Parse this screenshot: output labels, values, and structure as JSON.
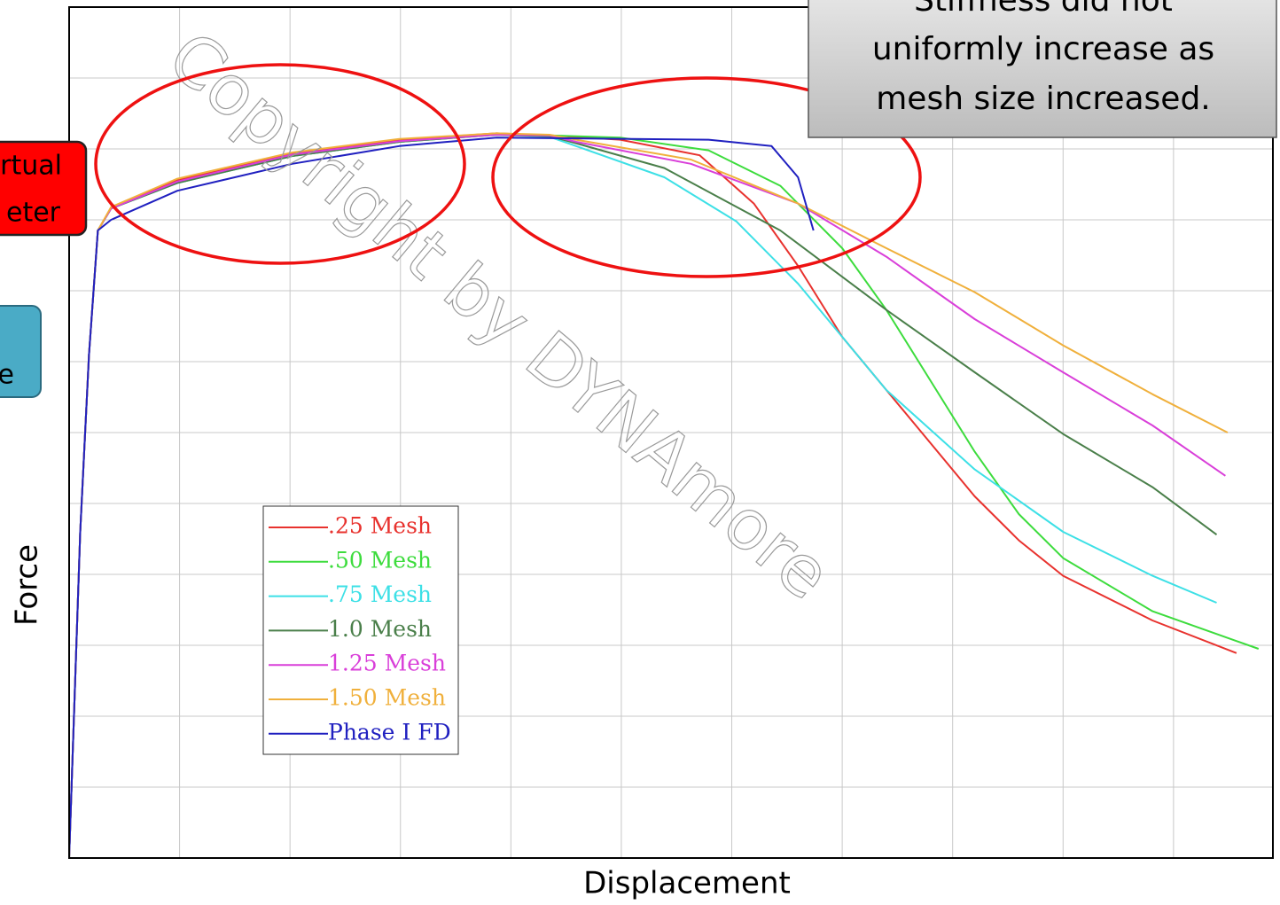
{
  "chart_data": {
    "type": "line",
    "xlabel": "Displacement",
    "ylabel": "Force",
    "xlim": [
      0,
      10.9
    ],
    "ylim": [
      0,
      12
    ],
    "xticks": [
      0,
      1,
      2,
      3,
      4,
      5,
      6,
      7,
      8,
      9,
      10
    ],
    "yticks": [
      0,
      1,
      2,
      3,
      4,
      5,
      6,
      7,
      8,
      9,
      10,
      11,
      12
    ],
    "grid": true,
    "legend": "center-left",
    "series": [
      {
        "name": ".25 Mesh",
        "color": "#e8322e",
        "x": [
          0,
          0.1,
          0.18,
          0.26,
          0.38,
          0.98,
          2.02,
          2.99,
          3.87,
          4.35,
          4.99,
          5.71,
          6.2,
          6.6,
          7.0,
          7.4,
          7.8,
          8.2,
          8.6,
          9.0,
          9.81,
          10.57
        ],
        "values": [
          0,
          4.6,
          7.1,
          8.85,
          9.16,
          9.56,
          9.94,
          10.13,
          10.22,
          10.19,
          10.13,
          9.91,
          9.23,
          8.35,
          7.35,
          6.6,
          5.85,
          5.1,
          4.48,
          3.98,
          3.35,
          2.89
        ]
      },
      {
        "name": ".50 Mesh",
        "color": "#3ddc3d",
        "x": [
          0,
          0.1,
          0.18,
          0.26,
          0.38,
          0.98,
          2.02,
          2.99,
          3.87,
          4.35,
          4.99,
          5.79,
          6.44,
          7.0,
          7.4,
          7.8,
          8.2,
          8.6,
          9.0,
          9.81,
          10.77
        ],
        "values": [
          0,
          4.6,
          7.1,
          8.85,
          9.16,
          9.52,
          9.9,
          10.1,
          10.2,
          10.19,
          10.16,
          9.98,
          9.48,
          8.6,
          7.73,
          6.73,
          5.73,
          4.85,
          4.23,
          3.48,
          2.95
        ]
      },
      {
        "name": ".75 Mesh",
        "color": "#3de0e6",
        "x": [
          0,
          0.1,
          0.18,
          0.26,
          0.38,
          0.98,
          2.02,
          2.99,
          3.87,
          4.35,
          4.59,
          5.39,
          6.04,
          6.6,
          7.4,
          8.2,
          9.0,
          9.81,
          10.39
        ],
        "values": [
          0,
          4.6,
          7.1,
          8.85,
          9.16,
          9.52,
          9.9,
          10.1,
          10.2,
          10.17,
          10.04,
          9.6,
          8.98,
          8.1,
          6.6,
          5.48,
          4.6,
          3.98,
          3.6
        ]
      },
      {
        "name": "1.0 Mesh",
        "color": "#4a7f4a",
        "x": [
          0,
          0.1,
          0.18,
          0.26,
          0.38,
          0.98,
          2.02,
          2.99,
          3.87,
          4.35,
          4.59,
          5.39,
          6.44,
          7.4,
          8.2,
          9.0,
          9.81,
          10.39
        ],
        "values": [
          0,
          4.6,
          7.1,
          8.85,
          9.16,
          9.52,
          9.9,
          10.1,
          10.2,
          10.18,
          10.08,
          9.73,
          8.85,
          7.73,
          6.85,
          5.98,
          5.23,
          4.56
        ]
      },
      {
        "name": "1.25 Mesh",
        "color": "#d93fd9",
        "x": [
          0,
          0.1,
          0.18,
          0.26,
          0.38,
          0.98,
          2.02,
          2.99,
          3.87,
          4.35,
          4.59,
          5.63,
          6.6,
          7.4,
          8.2,
          9.0,
          9.81,
          10.47
        ],
        "values": [
          0,
          4.6,
          7.1,
          8.85,
          9.16,
          9.54,
          9.92,
          10.11,
          10.2,
          10.19,
          10.1,
          9.79,
          9.23,
          8.48,
          7.6,
          6.85,
          6.1,
          5.39
        ]
      },
      {
        "name": "1.50 Mesh",
        "color": "#f0b03c",
        "x": [
          0,
          0.1,
          0.18,
          0.26,
          0.38,
          0.98,
          2.02,
          2.99,
          3.87,
          4.35,
          4.59,
          5.63,
          6.6,
          7.4,
          8.2,
          9.0,
          9.81,
          10.49
        ],
        "values": [
          0,
          4.6,
          7.1,
          8.85,
          9.18,
          9.58,
          9.95,
          10.14,
          10.22,
          10.2,
          10.13,
          9.85,
          9.23,
          8.6,
          7.98,
          7.23,
          6.54,
          6.0
        ]
      },
      {
        "name": "Phase I FD",
        "color": "#2020c0",
        "x": [
          0,
          0.1,
          0.18,
          0.26,
          0.38,
          0.98,
          2.02,
          2.99,
          3.87,
          5.79,
          6.36,
          6.6,
          6.74
        ],
        "values": [
          0,
          4.6,
          7.1,
          8.85,
          9.0,
          9.41,
          9.79,
          10.04,
          10.16,
          10.13,
          10.04,
          9.6,
          8.85
        ]
      }
    ],
    "callout": [
      "Stiffness did not",
      "uniformly increase as",
      "mesh size increased."
    ],
    "side_labels": {
      "red_box": [
        "rtual",
        "eter"
      ],
      "teal_box": "e"
    },
    "watermark": "Copyright by DYNAmore"
  }
}
